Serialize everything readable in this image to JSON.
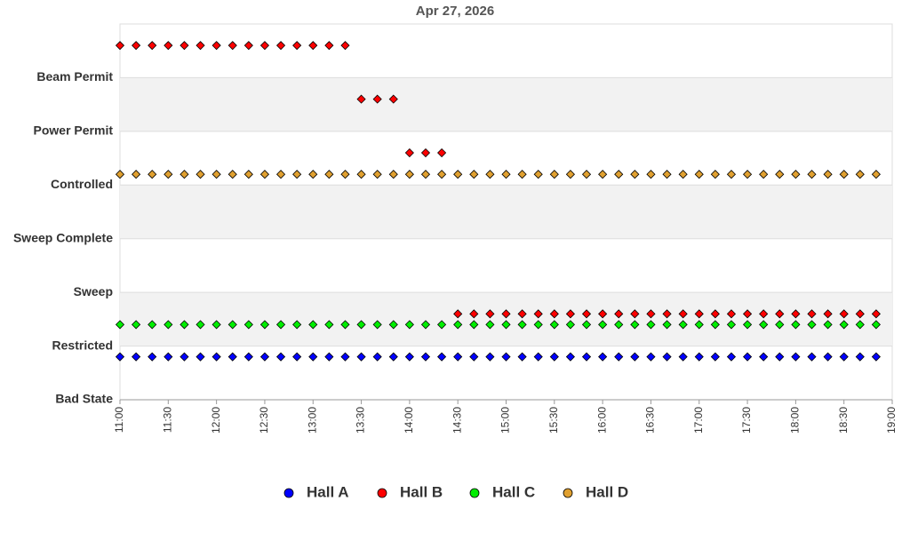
{
  "chart_data": {
    "type": "scatter",
    "title": "Apr 27, 2026",
    "x": [
      "11:00",
      "11:10",
      "11:20",
      "11:30",
      "11:40",
      "11:50",
      "12:00",
      "12:10",
      "12:20",
      "12:30",
      "12:40",
      "12:50",
      "13:00",
      "13:10",
      "13:20",
      "13:30",
      "13:40",
      "13:50",
      "14:00",
      "14:10",
      "14:20",
      "14:30",
      "14:40",
      "14:50",
      "15:00",
      "15:10",
      "15:20",
      "15:30",
      "15:40",
      "15:50",
      "16:00",
      "16:10",
      "16:20",
      "16:30",
      "16:40",
      "16:50",
      "17:00",
      "17:10",
      "17:20",
      "17:30",
      "17:40",
      "17:50",
      "18:00",
      "18:10",
      "18:20",
      "18:30",
      "18:40",
      "18:50"
    ],
    "xlim": [
      "11:00",
      "19:00"
    ],
    "xticks": [
      "11:00",
      "11:30",
      "12:00",
      "12:30",
      "13:00",
      "13:30",
      "14:00",
      "14:30",
      "15:00",
      "15:30",
      "16:00",
      "16:30",
      "17:00",
      "17:30",
      "18:00",
      "18:30",
      "19:00"
    ],
    "ylim": [
      0,
      7
    ],
    "yticks": [
      {
        "value": 0,
        "label": "Bad State"
      },
      {
        "value": 1,
        "label": "Restricted"
      },
      {
        "value": 2,
        "label": "Sweep"
      },
      {
        "value": 3,
        "label": "Sweep Complete"
      },
      {
        "value": 4,
        "label": "Controlled"
      },
      {
        "value": 5,
        "label": "Power Permit"
      },
      {
        "value": 6,
        "label": "Beam Permit"
      }
    ],
    "grid": true,
    "series": [
      {
        "name": "Hall A",
        "color": "#0000ff",
        "values": [
          0.8,
          0.8,
          0.8,
          0.8,
          0.8,
          0.8,
          0.8,
          0.8,
          0.8,
          0.8,
          0.8,
          0.8,
          0.8,
          0.8,
          0.8,
          0.8,
          0.8,
          0.8,
          0.8,
          0.8,
          0.8,
          0.8,
          0.8,
          0.8,
          0.8,
          0.8,
          0.8,
          0.8,
          0.8,
          0.8,
          0.8,
          0.8,
          0.8,
          0.8,
          0.8,
          0.8,
          0.8,
          0.8,
          0.8,
          0.8,
          0.8,
          0.8,
          0.8,
          0.8,
          0.8,
          0.8,
          0.8,
          0.8
        ]
      },
      {
        "name": "Hall B",
        "color": "#ff0000",
        "values": [
          6.6,
          6.6,
          6.6,
          6.6,
          6.6,
          6.6,
          6.6,
          6.6,
          6.6,
          6.6,
          6.6,
          6.6,
          6.6,
          6.6,
          6.6,
          5.6,
          5.6,
          5.6,
          4.6,
          4.6,
          4.6,
          1.6,
          1.6,
          1.6,
          1.6,
          1.6,
          1.6,
          1.6,
          1.6,
          1.6,
          1.6,
          1.6,
          1.6,
          1.6,
          1.6,
          1.6,
          1.6,
          1.6,
          1.6,
          1.6,
          1.6,
          1.6,
          1.6,
          1.6,
          1.6,
          1.6,
          1.6,
          1.6
        ]
      },
      {
        "name": "Hall C",
        "color": "#00ee00",
        "values": [
          1.4,
          1.4,
          1.4,
          1.4,
          1.4,
          1.4,
          1.4,
          1.4,
          1.4,
          1.4,
          1.4,
          1.4,
          1.4,
          1.4,
          1.4,
          1.4,
          1.4,
          1.4,
          1.4,
          1.4,
          1.4,
          1.4,
          1.4,
          1.4,
          1.4,
          1.4,
          1.4,
          1.4,
          1.4,
          1.4,
          1.4,
          1.4,
          1.4,
          1.4,
          1.4,
          1.4,
          1.4,
          1.4,
          1.4,
          1.4,
          1.4,
          1.4,
          1.4,
          1.4,
          1.4,
          1.4,
          1.4,
          1.4
        ]
      },
      {
        "name": "Hall D",
        "color": "#e0a030",
        "values": [
          4.2,
          4.2,
          4.2,
          4.2,
          4.2,
          4.2,
          4.2,
          4.2,
          4.2,
          4.2,
          4.2,
          4.2,
          4.2,
          4.2,
          4.2,
          4.2,
          4.2,
          4.2,
          4.2,
          4.2,
          4.2,
          4.2,
          4.2,
          4.2,
          4.2,
          4.2,
          4.2,
          4.2,
          4.2,
          4.2,
          4.2,
          4.2,
          4.2,
          4.2,
          4.2,
          4.2,
          4.2,
          4.2,
          4.2,
          4.2,
          4.2,
          4.2,
          4.2,
          4.2,
          4.2,
          4.2,
          4.2,
          4.2
        ]
      }
    ]
  }
}
